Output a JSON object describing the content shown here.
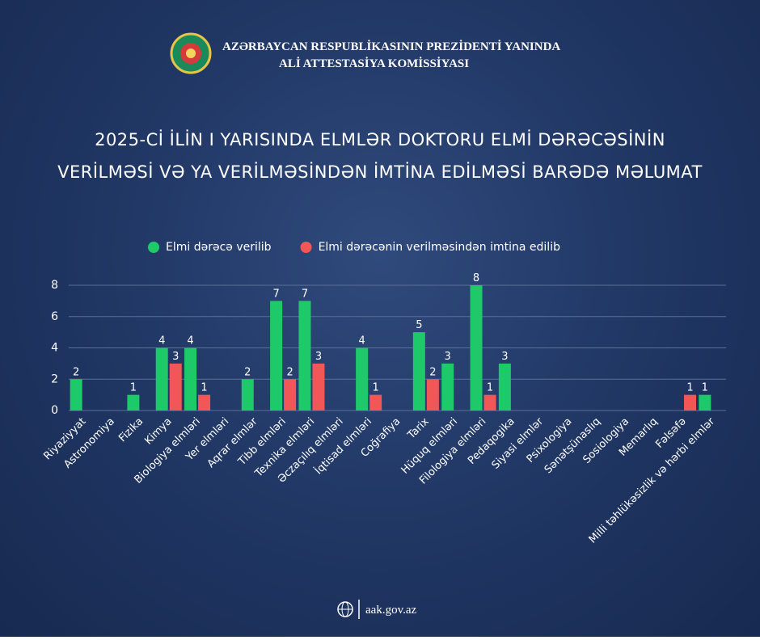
{
  "header": {
    "lines": [
      "AZƏRBAYCAN RESPUBLİKASININ PREZİDENTİ YANINDA",
      "ALİ ATTESTASİYA KOMİSSİYASI"
    ]
  },
  "chart_data": {
    "type": "bar",
    "title": [
      "2025-Cİ İLİN I YARISINDA ELMLƏR DOKTORU ELMİ DƏRƏCƏSİNİN",
      "VERİLMƏSİ VƏ YA VERİLMƏSİNDƏN İMTİNA EDİLMƏSİ BARƏDƏ MƏLUMAT"
    ],
    "categories": [
      "Riyaziyyat",
      "Astronomiya",
      "Fizika",
      "Kimya",
      "Biologiya elmləri",
      "Yer elmləri",
      "Aqrar elmlər",
      "Tibb elmləri",
      "Texnika elmləri",
      "Əczaçılıq elmləri",
      "İqtisad elmləri",
      "Coğrafiya",
      "Tarix",
      "Hüquq elmləri",
      "Filologiya elmləri",
      "Pedaqogika",
      "Siyasi elmlər",
      "Psixologiya",
      "Sənətşünaslıq",
      "Sosiologiya",
      "Memarlıq",
      "Fəlsəfə",
      "Milli təhlükəsizlik və hərbi elmlər"
    ],
    "series": [
      {
        "name": "Elmi dərəcə verilib",
        "color": "#1ec96a",
        "values": [
          2,
          null,
          1,
          4,
          4,
          null,
          2,
          7,
          7,
          null,
          4,
          null,
          5,
          3,
          8,
          3,
          null,
          null,
          null,
          null,
          null,
          null,
          1
        ]
      },
      {
        "name": "Elmi dərəcənin verilməsindən imtina edilib",
        "color": "#f25757",
        "values": [
          null,
          null,
          null,
          3,
          1,
          null,
          null,
          2,
          3,
          null,
          1,
          null,
          2,
          null,
          1,
          null,
          null,
          null,
          null,
          null,
          null,
          1,
          null
        ]
      }
    ],
    "ylim": [
      0,
      8
    ],
    "yticks": [
      0,
      2,
      4,
      6,
      8
    ],
    "grid": true,
    "legend": "top"
  },
  "footer": {
    "website": "aak.gov.az"
  }
}
